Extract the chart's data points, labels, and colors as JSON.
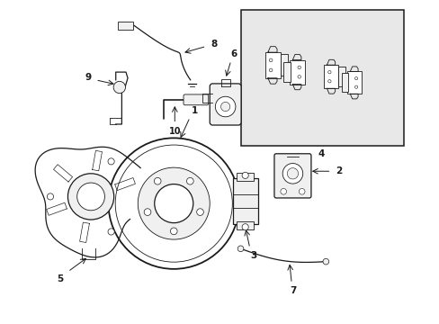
{
  "bg_color": "#ffffff",
  "line_color": "#1a1a1a",
  "fill_white": "#ffffff",
  "fill_light": "#f0f0f0",
  "fill_inset": "#e8e8e8",
  "lw_thin": 0.6,
  "lw_med": 0.9,
  "lw_thick": 1.3,
  "xlim": [
    0,
    8.2
  ],
  "ylim": [
    0,
    7.0
  ],
  "figsize": [
    4.89,
    3.6
  ],
  "dpi": 100
}
